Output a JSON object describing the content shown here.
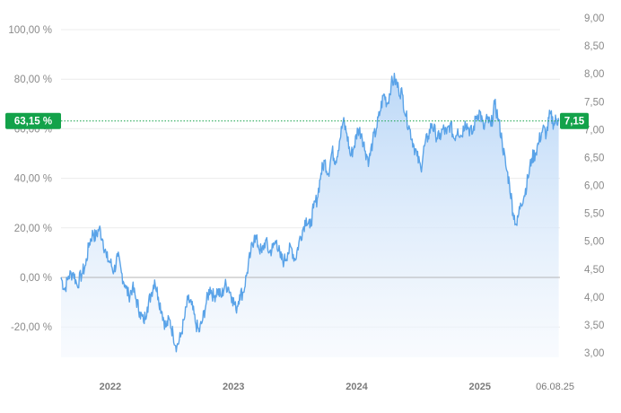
{
  "chart_data": {
    "type": "area",
    "left_axis": {
      "unit": "percent",
      "ticks": [
        "100,00 %",
        "80,00 %",
        "60,00 %",
        "40,00 %",
        "20,00 %",
        "0,00 %",
        "-20,00 %"
      ],
      "tick_values": [
        100,
        80,
        60,
        40,
        20,
        0,
        -20
      ],
      "range": [
        -32.4,
        105
      ]
    },
    "right_axis": {
      "ticks": [
        "9,00",
        "8,50",
        "8,00",
        "7,50",
        "7,00",
        "6,50",
        "6,00",
        "5,50",
        "5,00",
        "4,50",
        "4,00",
        "3,50",
        "3,00"
      ],
      "tick_values": [
        9.0,
        8.5,
        8.0,
        7.5,
        7.0,
        6.5,
        6.0,
        5.5,
        5.0,
        4.5,
        4.0,
        3.5,
        3.0
      ],
      "range": [
        2.8,
        9.1
      ]
    },
    "x_axis": {
      "ticks": [
        "2022",
        "2023",
        "2024",
        "2025"
      ],
      "tick_positions": [
        2022.0,
        2023.0,
        2024.0,
        2025.0
      ],
      "last_label": "06.08.25",
      "range": [
        2021.6,
        2025.65
      ]
    },
    "baseline_percent": 0,
    "current": {
      "percent_label": "63,15 %",
      "price_label": "7,15",
      "percent": 63.15,
      "price": 7.15
    },
    "series": [
      {
        "points": [
          [
            2021.6,
            0.0
          ],
          [
            2021.63,
            -5.0
          ],
          [
            2021.66,
            0.5
          ],
          [
            2021.7,
            2.0
          ],
          [
            2021.73,
            -3.0
          ],
          [
            2021.77,
            1.5
          ],
          [
            2021.8,
            5.0
          ],
          [
            2021.83,
            14.0
          ],
          [
            2021.86,
            18.0
          ],
          [
            2021.88,
            16.0
          ],
          [
            2021.91,
            20.0
          ],
          [
            2021.94,
            15.0
          ],
          [
            2021.97,
            8.0
          ],
          [
            2022.0,
            6.0
          ],
          [
            2022.03,
            2.5
          ],
          [
            2022.06,
            8.5
          ],
          [
            2022.09,
            2.0
          ],
          [
            2022.12,
            -3.0
          ],
          [
            2022.15,
            -7.5
          ],
          [
            2022.18,
            -4.0
          ],
          [
            2022.21,
            -9.0
          ],
          [
            2022.24,
            -14.0
          ],
          [
            2022.27,
            -18.0
          ],
          [
            2022.3,
            -12.0
          ],
          [
            2022.33,
            -7.0
          ],
          [
            2022.36,
            -1.0
          ],
          [
            2022.39,
            -8.0
          ],
          [
            2022.42,
            -14.0
          ],
          [
            2022.45,
            -20.0
          ],
          [
            2022.48,
            -17.0
          ],
          [
            2022.51,
            -23.0
          ],
          [
            2022.54,
            -28.0
          ],
          [
            2022.57,
            -24.0
          ],
          [
            2022.6,
            -17.0
          ],
          [
            2022.63,
            -9.0
          ],
          [
            2022.66,
            -11.0
          ],
          [
            2022.69,
            -18.0
          ],
          [
            2022.72,
            -22.0
          ],
          [
            2022.75,
            -17.0
          ],
          [
            2022.78,
            -10.0
          ],
          [
            2022.81,
            -4.0
          ],
          [
            2022.84,
            -8.0
          ],
          [
            2022.87,
            -5.0
          ],
          [
            2022.9,
            -8.0
          ],
          [
            2022.93,
            -3.0
          ],
          [
            2022.96,
            -4.0
          ],
          [
            2022.99,
            -8.0
          ],
          [
            2023.02,
            -13.0
          ],
          [
            2023.05,
            -7.0
          ],
          [
            2023.08,
            -6.0
          ],
          [
            2023.11,
            2.0
          ],
          [
            2023.14,
            10.0
          ],
          [
            2023.17,
            17.0
          ],
          [
            2023.2,
            13.0
          ],
          [
            2023.23,
            10.0
          ],
          [
            2023.26,
            15.0
          ],
          [
            2023.29,
            10.0
          ],
          [
            2023.32,
            12.0
          ],
          [
            2023.35,
            15.0
          ],
          [
            2023.38,
            8.0
          ],
          [
            2023.41,
            6.5
          ],
          [
            2023.44,
            10.0
          ],
          [
            2023.47,
            12.0
          ],
          [
            2023.5,
            7.0
          ],
          [
            2023.53,
            14.0
          ],
          [
            2023.56,
            19.0
          ],
          [
            2023.59,
            24.0
          ],
          [
            2023.62,
            20.0
          ],
          [
            2023.65,
            28.0
          ],
          [
            2023.68,
            32.0
          ],
          [
            2023.71,
            42.0
          ],
          [
            2023.74,
            47.0
          ],
          [
            2023.77,
            42.0
          ],
          [
            2023.8,
            51.0
          ],
          [
            2023.83,
            47.0
          ],
          [
            2023.86,
            55.0
          ],
          [
            2023.89,
            63.0
          ],
          [
            2023.92,
            58.0
          ],
          [
            2023.95,
            49.0
          ],
          [
            2023.98,
            53.0
          ],
          [
            2024.01,
            60.0
          ],
          [
            2024.04,
            58.0
          ],
          [
            2024.07,
            51.0
          ],
          [
            2024.1,
            47.0
          ],
          [
            2024.13,
            55.0
          ],
          [
            2024.16,
            60.0
          ],
          [
            2024.19,
            67.0
          ],
          [
            2024.22,
            74.0
          ],
          [
            2024.25,
            70.0
          ],
          [
            2024.28,
            78.0
          ],
          [
            2024.31,
            80.0
          ],
          [
            2024.34,
            76.0
          ],
          [
            2024.37,
            74.0
          ],
          [
            2024.4,
            65.0
          ],
          [
            2024.43,
            60.0
          ],
          [
            2024.46,
            54.0
          ],
          [
            2024.49,
            49.0
          ],
          [
            2024.52,
            44.0
          ],
          [
            2024.55,
            53.0
          ],
          [
            2024.58,
            57.0
          ],
          [
            2024.61,
            62.0
          ],
          [
            2024.64,
            58.0
          ],
          [
            2024.67,
            56.0
          ],
          [
            2024.7,
            60.0
          ],
          [
            2024.73,
            58.0
          ],
          [
            2024.76,
            62.0
          ],
          [
            2024.79,
            56.0
          ],
          [
            2024.82,
            60.0
          ],
          [
            2024.85,
            57.0
          ],
          [
            2024.88,
            63.0
          ],
          [
            2024.91,
            60.0
          ],
          [
            2024.94,
            58.0
          ],
          [
            2024.97,
            65.0
          ],
          [
            2025.0,
            67.0
          ],
          [
            2025.03,
            60.0
          ],
          [
            2025.06,
            64.0
          ],
          [
            2025.09,
            61.0
          ],
          [
            2025.12,
            70.0
          ],
          [
            2025.15,
            64.0
          ],
          [
            2025.18,
            55.0
          ],
          [
            2025.21,
            45.0
          ],
          [
            2025.24,
            38.0
          ],
          [
            2025.27,
            26.0
          ],
          [
            2025.3,
            21.0
          ],
          [
            2025.33,
            30.0
          ],
          [
            2025.36,
            33.0
          ],
          [
            2025.39,
            40.0
          ],
          [
            2025.42,
            48.0
          ],
          [
            2025.45,
            50.0
          ],
          [
            2025.48,
            55.0
          ],
          [
            2025.51,
            60.0
          ],
          [
            2025.54,
            58.0
          ],
          [
            2025.57,
            66.0
          ],
          [
            2025.6,
            62.0
          ],
          [
            2025.62,
            64.0
          ],
          [
            2025.64,
            63.15
          ]
        ]
      }
    ],
    "colors": {
      "line": "#5aa3e8",
      "fill_top": "#b8d6f7",
      "fill_bottom": "#f4f8fd",
      "current_badge": "#13a24a",
      "baseline": "#b5b5b5",
      "grid": "#ececec"
    },
    "grid": true
  }
}
